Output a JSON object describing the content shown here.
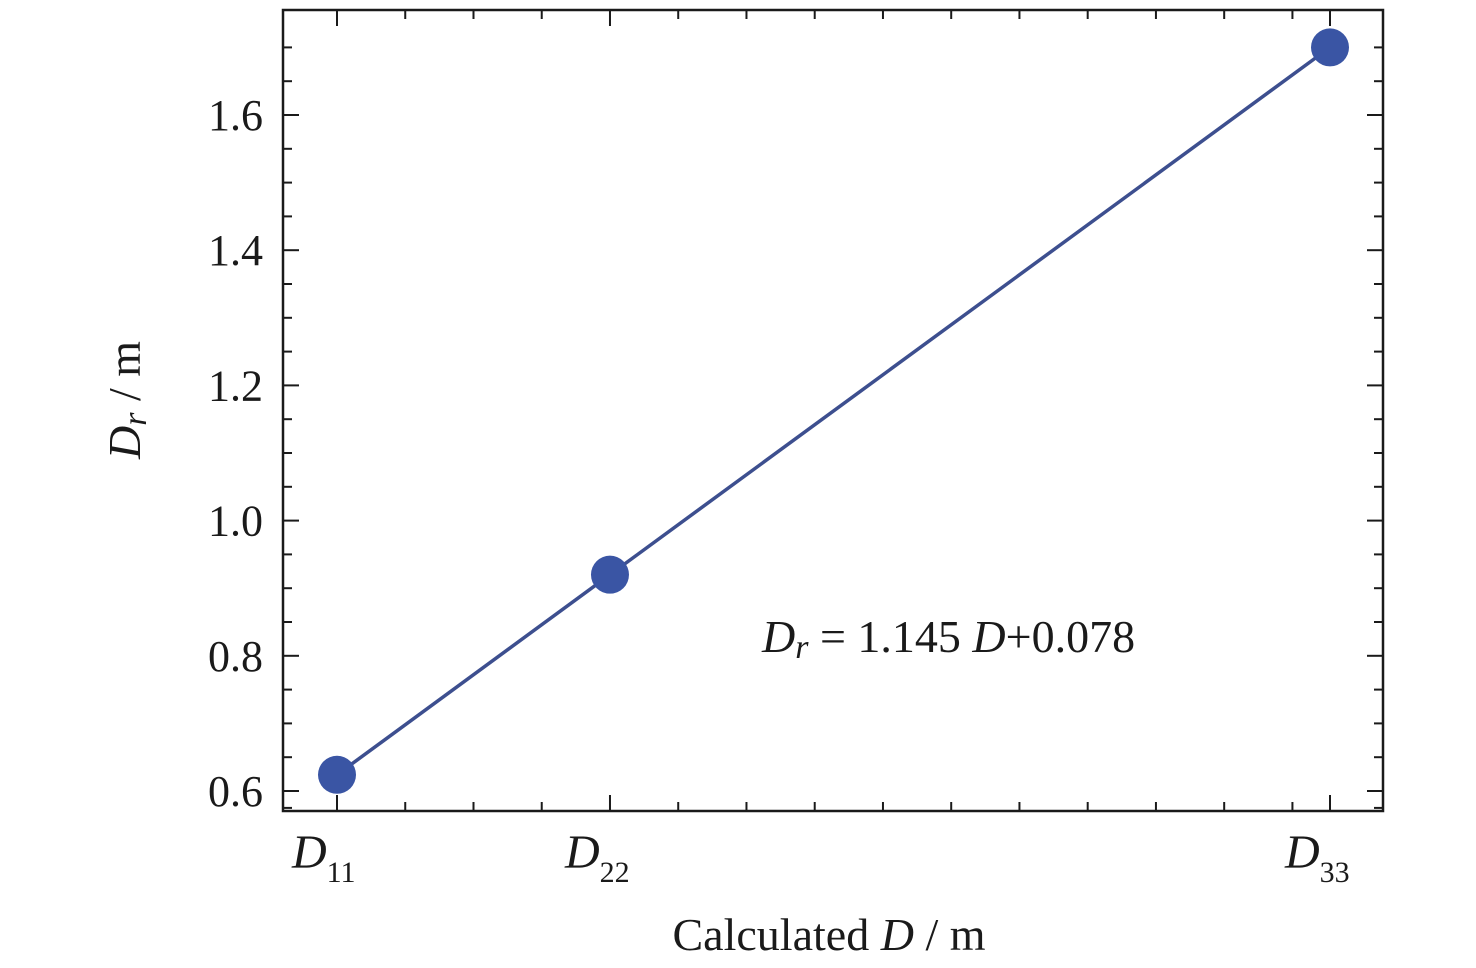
{
  "chart_data": {
    "type": "line",
    "title": "",
    "xlabel": {
      "pre": "Calculated ",
      "var": "D",
      "post": " / m"
    },
    "ylabel": {
      "var": "D",
      "sub": "r",
      "post": " / m"
    },
    "ylim": [
      0.57,
      1.72
    ],
    "yticks": [
      0.6,
      0.8,
      1.0,
      1.2,
      1.4,
      1.6
    ],
    "ytick_labels": [
      "0.6",
      "0.8",
      "1.0",
      "1.2",
      "1.4",
      "1.6"
    ],
    "xlim": [
      0.475,
      1.4
    ],
    "x_tick_labels": [
      {
        "var": "D",
        "sub": "11",
        "x": 0.4767
      },
      {
        "var": "D",
        "sub": "22",
        "x": 0.735
      },
      {
        "var": "D",
        "sub": "33",
        "x": 1.4163
      }
    ],
    "series": [
      {
        "x": [
          0.4767,
          0.735,
          1.4163
        ],
        "y": [
          0.624,
          0.92,
          1.7
        ]
      }
    ],
    "grid": false,
    "legend": "none",
    "annotation": {
      "var": "D",
      "sub": "r",
      "text": " = 1.145 ",
      "var2": "D",
      "text2": "+0.078"
    },
    "colors": {
      "line": "#3d4f8f",
      "marker": "#3a55a4",
      "axis": "#1a1a1a"
    }
  }
}
